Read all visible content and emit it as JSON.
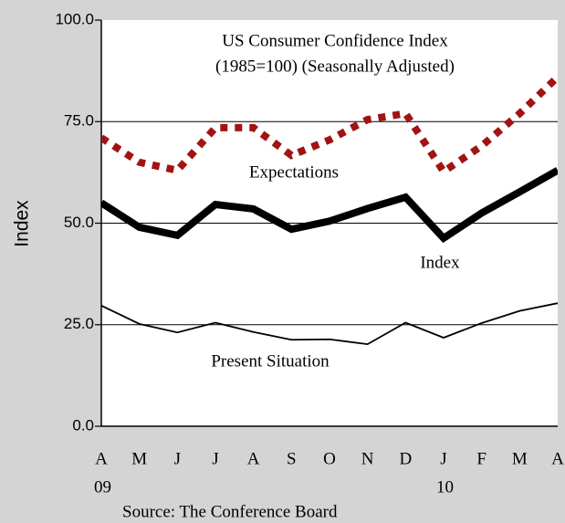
{
  "chart_data": {
    "type": "line",
    "title": "US Consumer Confidence Index",
    "subtitle": "(1985=100) (Seasonally Adjusted)",
    "y_label": "Index",
    "source": "Source: The Conference Board",
    "categories": [
      "A",
      "M",
      "J",
      "J",
      "A",
      "S",
      "O",
      "N",
      "D",
      "J",
      "F",
      "M",
      "A"
    ],
    "category_years": [
      "09",
      null,
      null,
      null,
      null,
      null,
      null,
      null,
      null,
      "10",
      null,
      null,
      null
    ],
    "ylim": [
      0,
      100
    ],
    "yticks": [
      {
        "value": 0,
        "label": "0.0"
      },
      {
        "value": 25,
        "label": "25.0"
      },
      {
        "value": 50,
        "label": "50.0"
      },
      {
        "value": 75,
        "label": "75.0"
      },
      {
        "value": 100,
        "label": "100.0"
      }
    ],
    "grid": true,
    "series": [
      {
        "name": "Expectations",
        "color": "#a01414",
        "values": [
          71,
          65,
          63,
          73.5,
          73.5,
          66.7,
          70.5,
          75.5,
          77,
          62.7,
          69,
          77,
          86
        ]
      },
      {
        "name": "Index",
        "color": "#000000",
        "values": [
          55,
          49,
          47,
          54.6,
          53.5,
          48.5,
          50.5,
          53.6,
          56.4,
          46.3,
          52.5,
          57.7,
          63
        ]
      },
      {
        "name": "Present Situation",
        "color": "#000000",
        "values": [
          29.7,
          25.2,
          23.1,
          25.5,
          23.2,
          21.3,
          21.4,
          20.2,
          25.5,
          21.8,
          25.4,
          28.4,
          30.3
        ]
      }
    ]
  }
}
